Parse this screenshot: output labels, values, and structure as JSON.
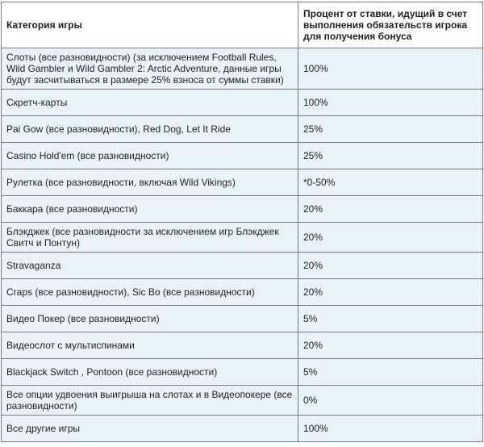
{
  "table": {
    "headers": {
      "category": "Категория игры",
      "percent": "Процент от ставки,  идущий в счет выполнения обязательств игрока для получения бонуса"
    },
    "rows": [
      {
        "category": "Слоты (все разновидности) (за исключением Football Rules, Wild Gambler и Wild Gambler 2: Arctic Adventure, данные игры будут засчитываться в размере 25% взноса от суммы ставки)",
        "percent": "100%"
      },
      {
        "category": "Скретч-карты",
        "percent": "100%"
      },
      {
        "category": "Pai Gow (все разновидности), Red Dog, Let  It Ride",
        "percent": "25%"
      },
      {
        "category": "Casino Hold'em (все разновидности)",
        "percent": "25%"
      },
      {
        "category": "Рулетка (все разновидности, включая Wild Vikings)",
        "percent": "*0-50%"
      },
      {
        "category": "Баккара (все разновидности)",
        "percent": "20%"
      },
      {
        "category": "Блэкджек (все разновидности за исключением игр Блэкджек Свитч и Понтун)",
        "percent": "20%"
      },
      {
        "category": "Stravaganza",
        "percent": "20%"
      },
      {
        "category": "Craps (все разновидности),  Sic Bo (все разновидности)",
        "percent": "20%"
      },
      {
        "category": "Видео Покер (все разновидности)",
        "percent": "5%"
      },
      {
        "category": "Видеослот с мультиспинами",
        "percent": "20%"
      },
      {
        "category": "Blackjack Switch , Pontoon (все разновидности)",
        "percent": "5%"
      },
      {
        "category": "Все опции удвоения выигрыша на слотах и в Видеопокере (все разновидности)",
        "percent": "0%"
      },
      {
        "category": "Все другие игры",
        "percent": "100%"
      }
    ]
  }
}
